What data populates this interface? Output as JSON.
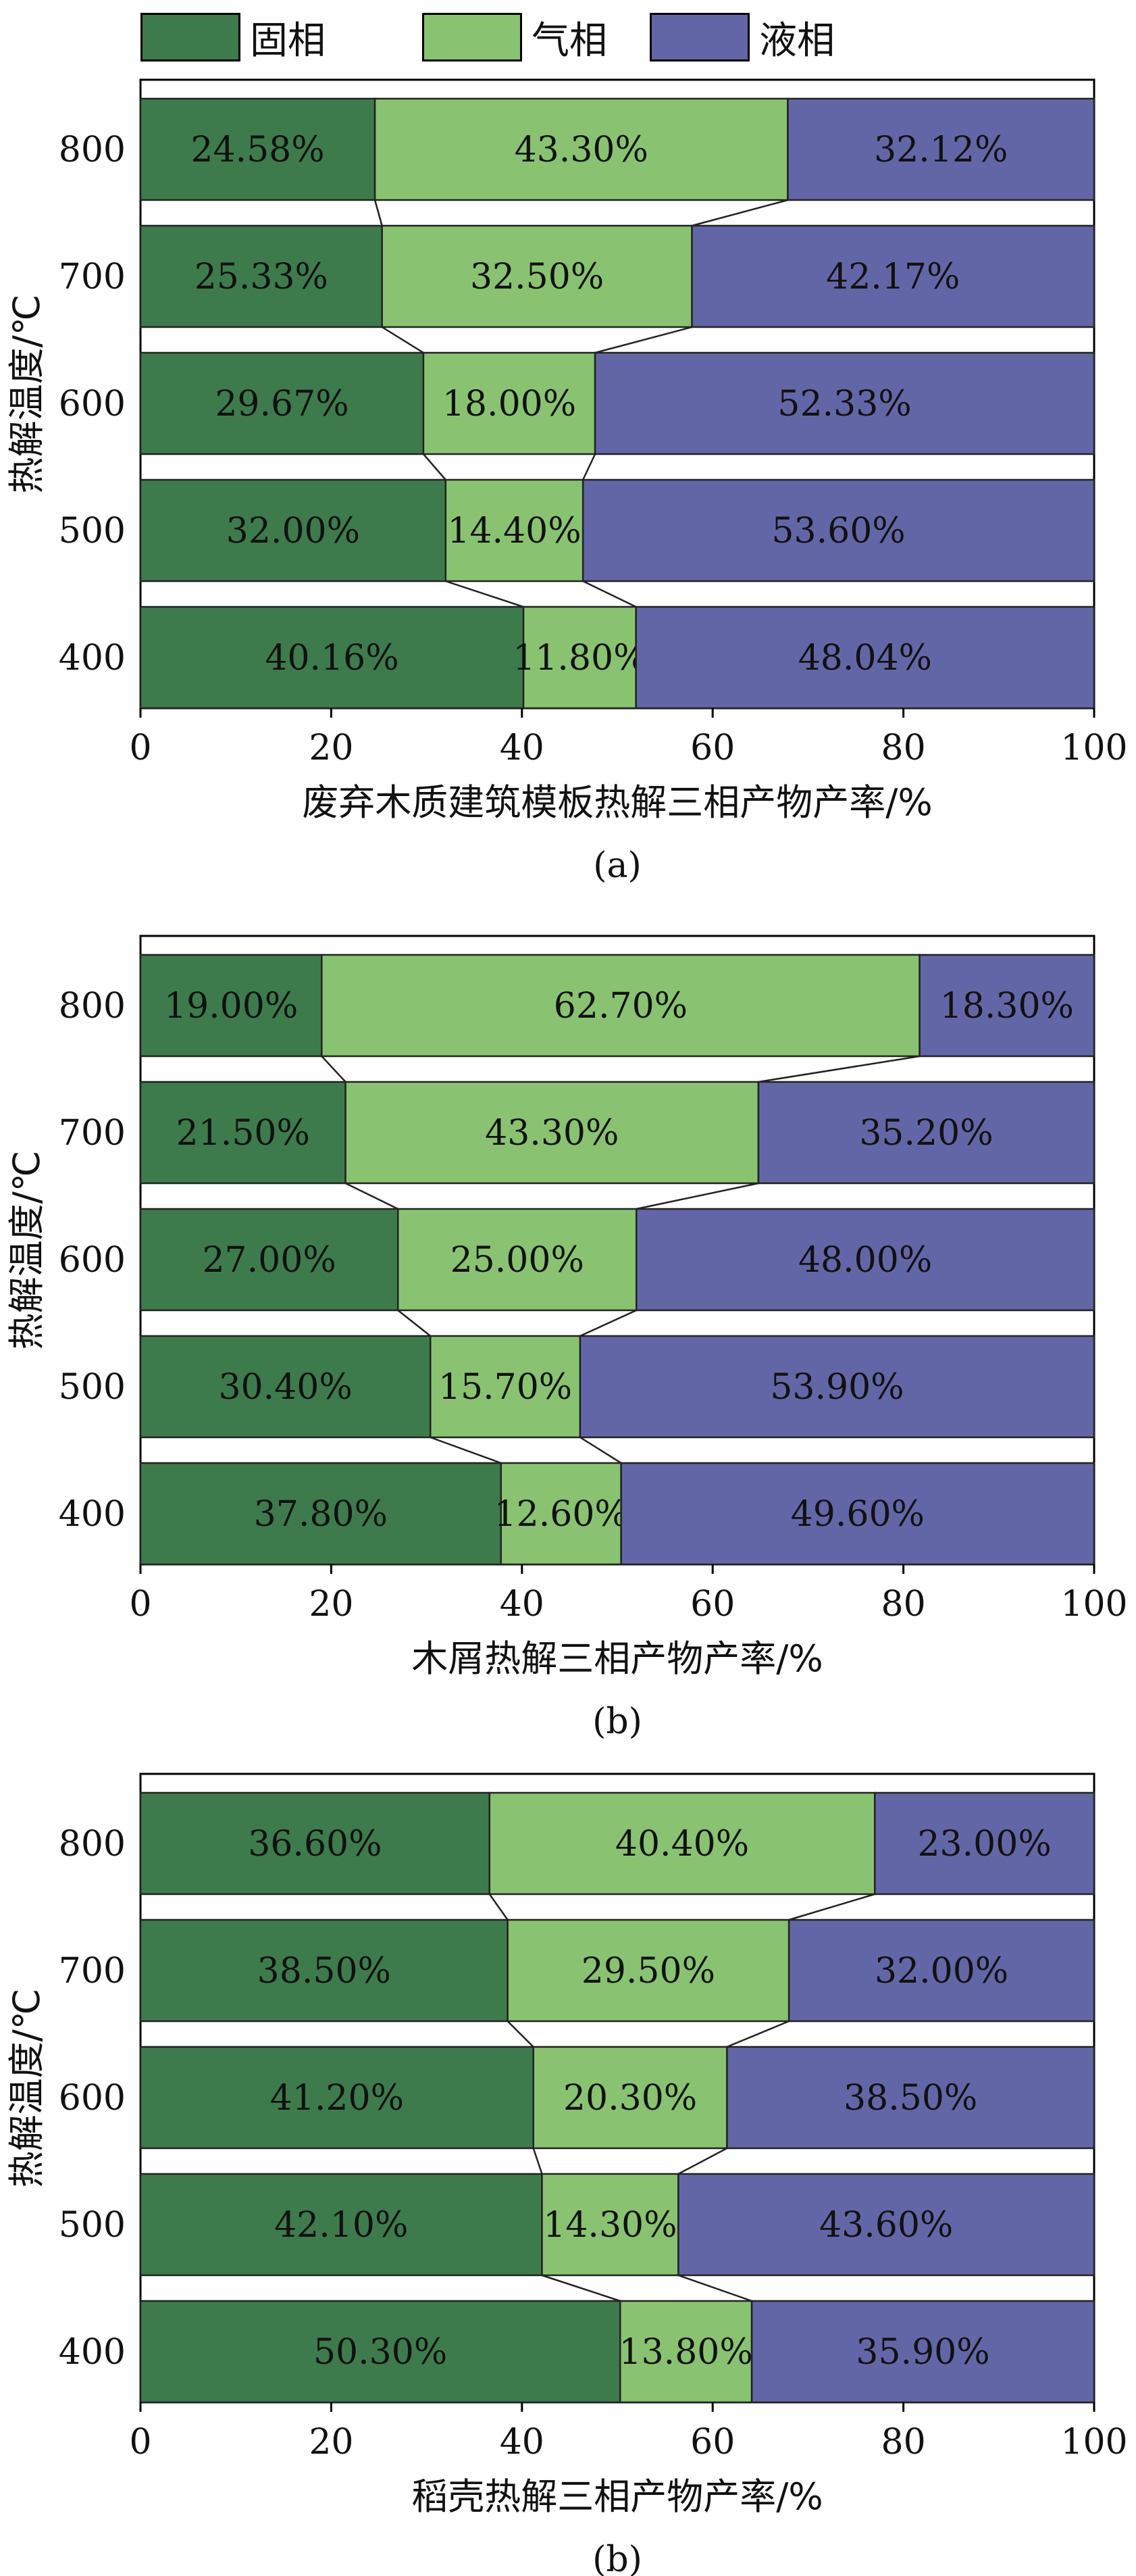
{
  "legend": [
    {
      "label": "固相",
      "color": "#3e7b4c"
    },
    {
      "label": "气相",
      "color": "#89c371"
    },
    {
      "label": "液相",
      "color": "#6366a6"
    }
  ],
  "chart_data": [
    {
      "type": "bar",
      "stacked": true,
      "orientation": "horizontal",
      "categories": [
        "800",
        "700",
        "600",
        "500",
        "400"
      ],
      "series": [
        {
          "name": "固相",
          "values": [
            24.58,
            25.33,
            29.67,
            32.0,
            40.16
          ]
        },
        {
          "name": "气相",
          "values": [
            43.3,
            32.5,
            18.0,
            14.4,
            11.8
          ]
        },
        {
          "name": "液相",
          "values": [
            32.12,
            42.17,
            52.33,
            53.6,
            48.04
          ]
        }
      ],
      "labels": [
        [
          "24.58%",
          "43.30%",
          "32.12%"
        ],
        [
          "25.33%",
          "32.50%",
          "42.17%"
        ],
        [
          "29.67%",
          "18.00%",
          "52.33%"
        ],
        [
          "32.00%",
          "14.40%",
          "53.60%"
        ],
        [
          "40.16%",
          "11.80%",
          "48.04%"
        ]
      ],
      "xlabel": "废弃木质建筑模板热解三相产物产率/%",
      "ylabel": "热解温度/℃",
      "caption": "(a)",
      "xlim": [
        0,
        100
      ],
      "xticks": [
        "0",
        "20",
        "40",
        "60",
        "80",
        "100"
      ]
    },
    {
      "type": "bar",
      "stacked": true,
      "orientation": "horizontal",
      "categories": [
        "800",
        "700",
        "600",
        "500",
        "400"
      ],
      "series": [
        {
          "name": "固相",
          "values": [
            19.0,
            21.5,
            27.0,
            30.4,
            37.8
          ]
        },
        {
          "name": "气相",
          "values": [
            62.7,
            43.3,
            25.0,
            15.7,
            12.6
          ]
        },
        {
          "name": "液相",
          "values": [
            18.3,
            35.2,
            48.0,
            53.9,
            49.6
          ]
        }
      ],
      "labels": [
        [
          "19.00%",
          "62.70%",
          "18.30%"
        ],
        [
          "21.50%",
          "43.30%",
          "35.20%"
        ],
        [
          "27.00%",
          "25.00%",
          "48.00%"
        ],
        [
          "30.40%",
          "15.70%",
          "53.90%"
        ],
        [
          "37.80%",
          "12.60%",
          "49.60%"
        ]
      ],
      "xlabel": "木屑热解三相产物产率/%",
      "ylabel": "热解温度/℃",
      "caption": "(b)",
      "xlim": [
        0,
        100
      ],
      "xticks": [
        "0",
        "20",
        "40",
        "60",
        "80",
        "100"
      ]
    },
    {
      "type": "bar",
      "stacked": true,
      "orientation": "horizontal",
      "categories": [
        "800",
        "700",
        "600",
        "500",
        "400"
      ],
      "series": [
        {
          "name": "固相",
          "values": [
            36.6,
            38.5,
            41.2,
            42.1,
            50.3
          ]
        },
        {
          "name": "气相",
          "values": [
            40.4,
            29.5,
            20.3,
            14.3,
            13.8
          ]
        },
        {
          "name": "液相",
          "values": [
            23.0,
            32.0,
            38.5,
            43.6,
            35.9
          ]
        }
      ],
      "labels": [
        [
          "36.60%",
          "40.40%",
          "23.00%"
        ],
        [
          "38.50%",
          "29.50%",
          "32.00%"
        ],
        [
          "41.20%",
          "20.30%",
          "38.50%"
        ],
        [
          "42.10%",
          "14.30%",
          "43.60%"
        ],
        [
          "50.30%",
          "13.80%",
          "35.90%"
        ]
      ],
      "xlabel": "稻壳热解三相产物产率/%",
      "ylabel": "热解温度/℃",
      "caption": "(b)",
      "xlim": [
        0,
        100
      ],
      "xticks": [
        "0",
        "20",
        "40",
        "60",
        "80",
        "100"
      ]
    }
  ]
}
